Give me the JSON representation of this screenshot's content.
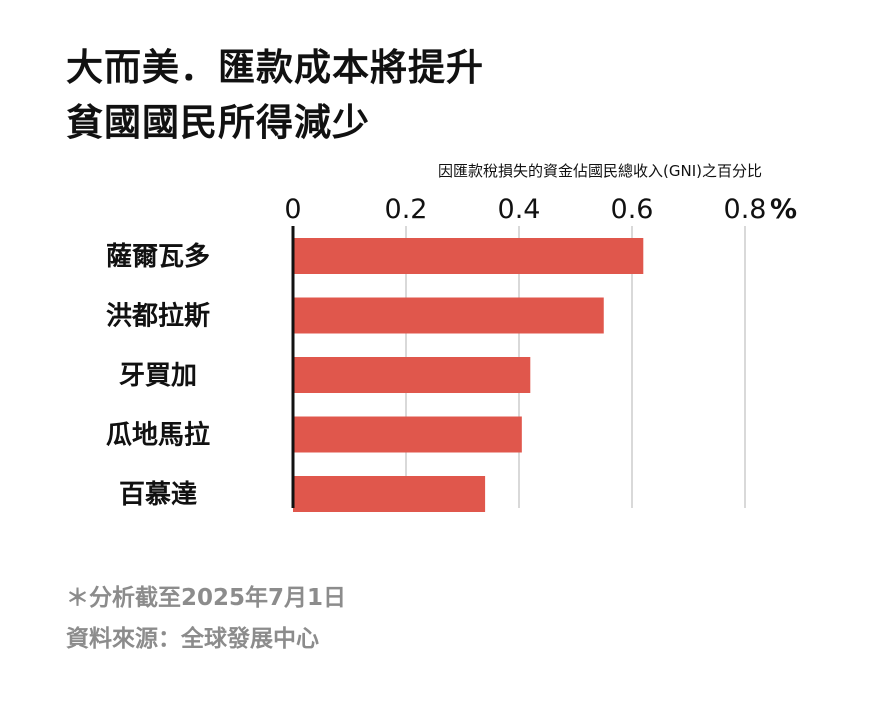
{
  "title_lines": [
    "大而美．匯款成本將提升",
    "貧國國民所得減少"
  ],
  "footnotes": [
    "＊分析截至2025年7月1日",
    "資料來源：全球發展中心"
  ],
  "chart_data": {
    "type": "bar",
    "orientation": "horizontal",
    "subtitle": "因匯款稅損失的資金佔國民總收入(GNI)之百分比",
    "unit": "%",
    "categories": [
      "薩爾瓦多",
      "洪都拉斯",
      "牙買加",
      "瓜地馬拉",
      "百慕達"
    ],
    "values": [
      0.62,
      0.55,
      0.42,
      0.405,
      0.34
    ],
    "xlim": [
      0,
      0.8
    ],
    "xticks": [
      "0",
      "0.2",
      "0.4",
      "0.6",
      "0.8"
    ],
    "grid": true,
    "bar_color": "#e0574c",
    "grid_color": "#d9d9d9",
    "axis_color": "#111111"
  }
}
